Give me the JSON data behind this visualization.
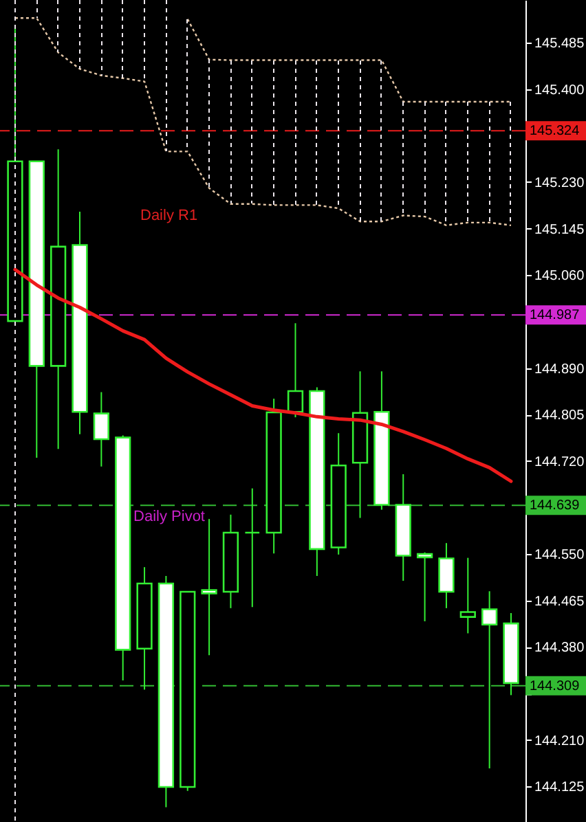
{
  "chart_data": {
    "type": "candlestick",
    "categories": [
      null,
      null,
      null,
      null,
      null,
      null,
      null,
      null,
      null,
      null,
      null,
      null,
      null,
      null,
      null,
      null,
      null,
      null,
      null,
      null,
      null,
      null,
      null,
      null
    ],
    "tick_labels": "y",
    "ylim": [
      144.06,
      145.563
    ],
    "yticks": [
      145.485,
      {
        "value": 145.4,
        "label": "145.400"
      },
      {
        "value": 145.315,
        "label": null
      },
      {
        "value": 145.23,
        "label": "145.230"
      },
      145.145,
      {
        "value": 145.06,
        "label": "145.060"
      },
      {
        "value": 144.975,
        "label": null
      },
      {
        "value": 144.89,
        "label": "144.890"
      },
      144.805,
      {
        "value": 144.72,
        "label": "144.720"
      },
      {
        "value": 144.635,
        "label": null
      },
      {
        "value": 144.55,
        "label": "144.550"
      },
      144.465,
      {
        "value": 144.38,
        "label": "144.380"
      },
      {
        "value": 144.295,
        "label": null
      },
      {
        "value": 144.21,
        "label": "144.210"
      },
      144.125
    ],
    "color": "#33ee33",
    "colors": [
      "#000000",
      "#ffffff",
      "#000000",
      "#ffffff",
      "#ffffff",
      "#ffffff",
      "#000000",
      "#ffffff",
      "#000000",
      "#ffffff",
      "#000000",
      "#33ee33",
      "#000000",
      "#000000",
      "#ffffff",
      "#000000",
      "#000000",
      "#ffffff",
      "#ffffff",
      "#ffffff",
      "#ffffff",
      "#000000",
      "#ffffff",
      "#ffffff"
    ],
    "ohlc": [
      [
        144.976,
        145.513,
        144.975,
        145.268
      ],
      [
        145.268,
        145.268,
        144.726,
        144.894
      ],
      [
        144.894,
        145.29,
        144.742,
        145.112
      ],
      [
        145.115,
        145.176,
        144.769,
        144.81
      ],
      [
        144.807,
        144.846,
        144.71,
        144.76
      ],
      [
        144.763,
        144.767,
        144.319,
        144.375
      ],
      [
        144.377,
        144.526,
        144.302,
        144.496
      ],
      [
        144.496,
        144.51,
        144.087,
        144.124
      ],
      [
        144.124,
        144.481,
        144.117,
        144.481
      ],
      [
        144.484,
        144.614,
        144.365,
        144.478
      ],
      [
        144.481,
        144.622,
        144.451,
        144.589
      ],
      [
        144.589,
        144.67,
        144.453,
        144.589
      ],
      [
        144.589,
        144.834,
        144.551,
        144.809
      ],
      [
        144.81,
        144.972,
        144.8,
        144.848
      ],
      [
        144.848,
        144.855,
        144.51,
        144.559
      ],
      [
        144.562,
        144.771,
        144.549,
        144.712
      ],
      [
        144.717,
        144.884,
        144.616,
        144.808
      ],
      [
        144.81,
        144.884,
        144.631,
        144.64
      ],
      [
        144.64,
        144.696,
        144.501,
        144.547
      ],
      [
        144.55,
        144.553,
        144.427,
        144.544
      ],
      [
        144.542,
        144.57,
        144.451,
        144.481
      ],
      [
        144.435,
        144.543,
        144.405,
        144.444
      ],
      [
        144.449,
        144.482,
        144.158,
        144.421
      ],
      [
        144.423,
        144.442,
        144.292,
        144.314
      ]
    ],
    "series": [
      {
        "type": "line",
        "line_style": "dotted",
        "color": "#e6c8a8",
        "values": [
          null,
          null,
          null,
          null,
          null,
          null,
          null,
          null,
          145.528,
          145.454,
          145.453,
          145.453,
          145.453,
          145.453,
          145.453,
          145.453,
          145.453,
          145.453,
          145.377,
          145.377,
          145.377,
          145.377,
          145.377,
          145.377
        ]
      },
      {
        "type": "line",
        "line_style": "dotted",
        "color": "#e6c8a8",
        "values": [
          145.53,
          145.53,
          145.467,
          145.437,
          145.425,
          145.42,
          145.414,
          145.286,
          145.286,
          145.219,
          145.19,
          145.19,
          145.188,
          145.188,
          145.188,
          145.182,
          145.158,
          145.158,
          145.169,
          145.167,
          145.151,
          145.156,
          145.156,
          145.151
        ]
      },
      {
        "type": "line",
        "color": "#ee1c1c",
        "values": [
          145.07,
          145.042,
          145.018,
          145.001,
          144.98,
          144.958,
          144.942,
          144.908,
          144.883,
          144.861,
          144.841,
          144.821,
          144.813,
          144.808,
          144.801,
          144.797,
          144.795,
          144.787,
          144.774,
          144.759,
          144.743,
          144.724,
          144.708,
          144.683
        ]
      }
    ],
    "ref_lines": [
      {
        "axis": "y",
        "value": 145.324,
        "label": "145.324",
        "color": "#e81c1c",
        "line_style": "dashed"
      },
      {
        "axis": "y",
        "value": 144.987,
        "label": "144.987",
        "color": "#d22ad2",
        "line_style": "dashed"
      },
      {
        "axis": "y",
        "value": 144.639,
        "label": "144.639",
        "color": "#33bb33",
        "line_style": "dashed"
      },
      {
        "axis": "y",
        "value": 144.309,
        "label": "144.309",
        "color": "#33bb33",
        "line_style": "dashed"
      }
    ],
    "annotations": [
      "Daily R1",
      "Daily Pivot"
    ]
  }
}
